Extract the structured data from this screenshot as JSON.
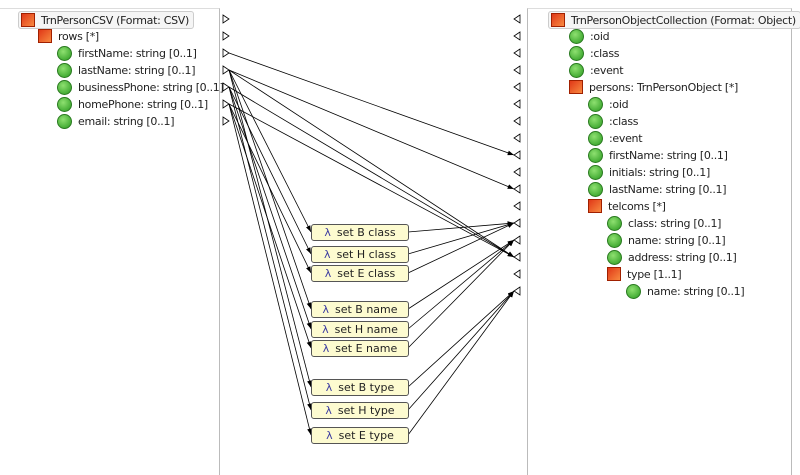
{
  "source": {
    "title": "TrnPersonCSV (Format: CSV)",
    "items": [
      {
        "label": "rows [*]",
        "kind": "complex",
        "level": 1
      },
      {
        "label": "firstName: string [0..1]",
        "kind": "simple",
        "level": 2
      },
      {
        "label": "lastName: string [0..1]",
        "kind": "simple",
        "level": 2
      },
      {
        "label": "businessPhone: string [0..1]",
        "kind": "simple",
        "level": 2
      },
      {
        "label": "homePhone: string [0..1]",
        "kind": "simple",
        "level": 2
      },
      {
        "label": "email: string [0..1]",
        "kind": "simple",
        "level": 2
      }
    ]
  },
  "target": {
    "title": "TrnPersonObjectCollection (Format: Object)",
    "items": [
      {
        "label": ":oid",
        "kind": "simple",
        "level": 1
      },
      {
        "label": ":class",
        "kind": "simple",
        "level": 1
      },
      {
        "label": ":event",
        "kind": "simple",
        "level": 1
      },
      {
        "label": "persons: TrnPersonObject [*]",
        "kind": "complex",
        "level": 1
      },
      {
        "label": ":oid",
        "kind": "simple",
        "level": 2
      },
      {
        "label": ":class",
        "kind": "simple",
        "level": 2
      },
      {
        "label": ":event",
        "kind": "simple",
        "level": 2
      },
      {
        "label": "firstName: string [0..1]",
        "kind": "simple",
        "level": 2
      },
      {
        "label": "initials: string [0..1]",
        "kind": "simple",
        "level": 2
      },
      {
        "label": "lastName: string [0..1]",
        "kind": "simple",
        "level": 2
      },
      {
        "label": "telcoms [*]",
        "kind": "complex",
        "level": 2
      },
      {
        "label": "class: string [0..1]",
        "kind": "simple",
        "level": 3
      },
      {
        "label": "name: string [0..1]",
        "kind": "simple",
        "level": 3
      },
      {
        "label": "address: string [0..1]",
        "kind": "simple",
        "level": 3
      },
      {
        "label": "type [1..1]",
        "kind": "complex",
        "level": 3
      },
      {
        "label": "name: string [0..1]",
        "kind": "simple",
        "level": 4
      }
    ]
  },
  "lambda_symbol": "λ",
  "functions": [
    "set B class",
    "set H class",
    "set E class",
    "set B name",
    "set H name",
    "set E name",
    "set B type",
    "set H type",
    "set E type"
  ]
}
